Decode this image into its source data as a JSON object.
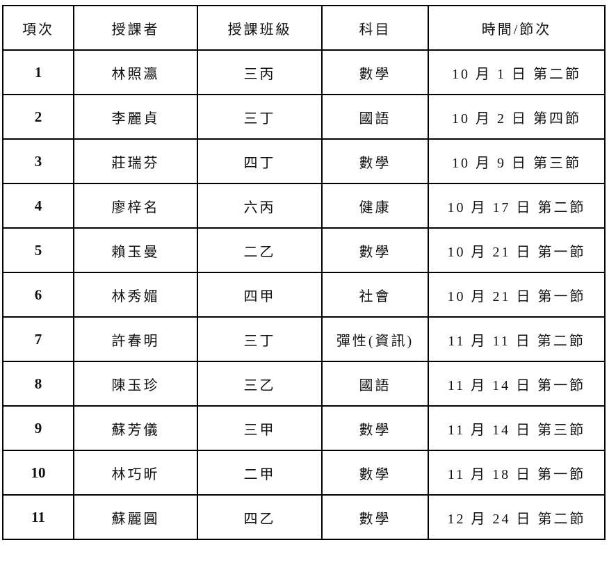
{
  "headers": [
    "項次",
    "授課者",
    "授課班級",
    "科目",
    "時間/節次"
  ],
  "rows": [
    [
      "1",
      "林照瀛",
      "三丙",
      "數學",
      "10 月 1 日 第二節"
    ],
    [
      "2",
      "李麗貞",
      "三丁",
      "國語",
      "10 月 2 日 第四節"
    ],
    [
      "3",
      "莊瑞芬",
      "四丁",
      "數學",
      "10 月 9 日 第三節"
    ],
    [
      "4",
      "廖梓名",
      "六丙",
      "健康",
      "10 月 17 日 第二節"
    ],
    [
      "5",
      "賴玉曼",
      "二乙",
      "數學",
      "10 月 21 日 第一節"
    ],
    [
      "6",
      "林秀媚",
      "四甲",
      "社會",
      "10 月 21 日 第一節"
    ],
    [
      "7",
      "許春明",
      "三丁",
      "彈性(資訊)",
      "11 月 11 日 第二節"
    ],
    [
      "8",
      "陳玉珍",
      "三乙",
      "國語",
      "11 月 14 日 第一節"
    ],
    [
      "9",
      "蘇芳儀",
      "三甲",
      "數學",
      "11 月 14 日 第三節"
    ],
    [
      "10",
      "林巧昕",
      "二甲",
      "數學",
      "11 月 18 日 第一節"
    ],
    [
      "11",
      "蘇麗圓",
      "四乙",
      "數學",
      "12 月 24 日 第二節"
    ]
  ]
}
